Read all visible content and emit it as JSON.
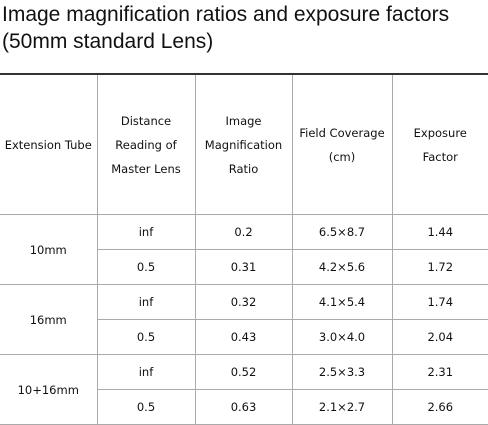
{
  "header": {
    "title": "Image magnification ratios and exposure factors (50mm standard Lens)"
  },
  "table": {
    "columns": [
      "Extension Tube",
      "Distance Reading of Master Lens",
      "Image Magnification Ratio",
      "Field Coverage (cm)",
      "Exposure Factor"
    ],
    "groups": [
      {
        "tube": "10mm",
        "rows": [
          [
            "inf",
            "0.2",
            "6.5×8.7",
            "1.44"
          ],
          [
            "0.5",
            "0.31",
            "4.2×5.6",
            "1.72"
          ]
        ]
      },
      {
        "tube": "16mm",
        "rows": [
          [
            "inf",
            "0.32",
            "4.1×5.4",
            "1.74"
          ],
          [
            "0.5",
            "0.43",
            "3.0×4.0",
            "2.04"
          ]
        ]
      },
      {
        "tube": "10+16mm",
        "rows": [
          [
            "inf",
            "0.52",
            "2.5×3.3",
            "2.31"
          ],
          [
            "0.5",
            "0.63",
            "2.1×2.7",
            "2.66"
          ]
        ]
      }
    ]
  }
}
